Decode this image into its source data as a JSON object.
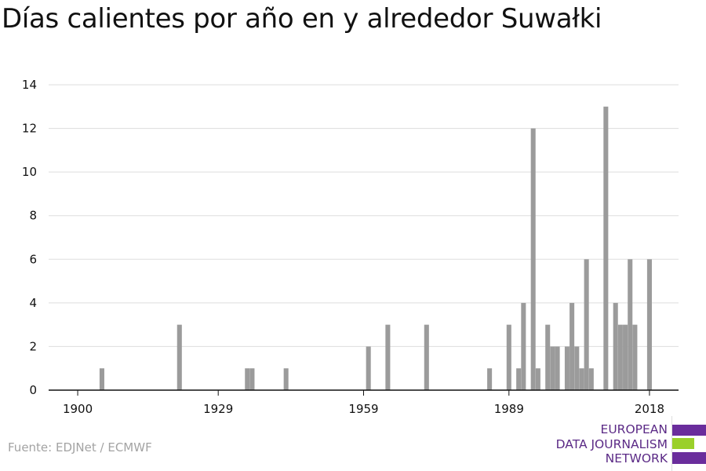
{
  "title": "Días calientes por año en y alrededor Suwałki",
  "source": "Fuente: EDJNet / ECMWF",
  "logo": {
    "lines": [
      "EUROPEAN",
      "DATA JOURNALISM",
      "NETWORK"
    ],
    "colors": [
      "#6a2d9c",
      "#9ad02a",
      "#6a2d9c"
    ]
  },
  "colors": {
    "bar": "#9b9b9b",
    "grid": "#dddddd",
    "axis": "#111111",
    "text": "#111111"
  },
  "chart_data": {
    "type": "bar",
    "x_ticks": [
      1900,
      1929,
      1959,
      1989,
      2018
    ],
    "y_ticks": [
      0,
      2,
      4,
      6,
      8,
      10,
      12,
      14
    ],
    "xlim": [
      1894,
      2024
    ],
    "ylim": [
      0,
      14
    ],
    "grid": true,
    "categories": [
      1905,
      1921,
      1935,
      1936,
      1943,
      1960,
      1964,
      1972,
      1985,
      1989,
      1991,
      1992,
      1994,
      1995,
      1997,
      1998,
      1999,
      2001,
      2002,
      2003,
      2004,
      2005,
      2006,
      2009,
      2011,
      2012,
      2013,
      2014,
      2015,
      2018
    ],
    "values": [
      1,
      3,
      1,
      1,
      1,
      2,
      3,
      3,
      1,
      3,
      1,
      4,
      12,
      1,
      3,
      2,
      2,
      2,
      4,
      2,
      1,
      6,
      1,
      13,
      4,
      3,
      3,
      6,
      3,
      6
    ]
  }
}
